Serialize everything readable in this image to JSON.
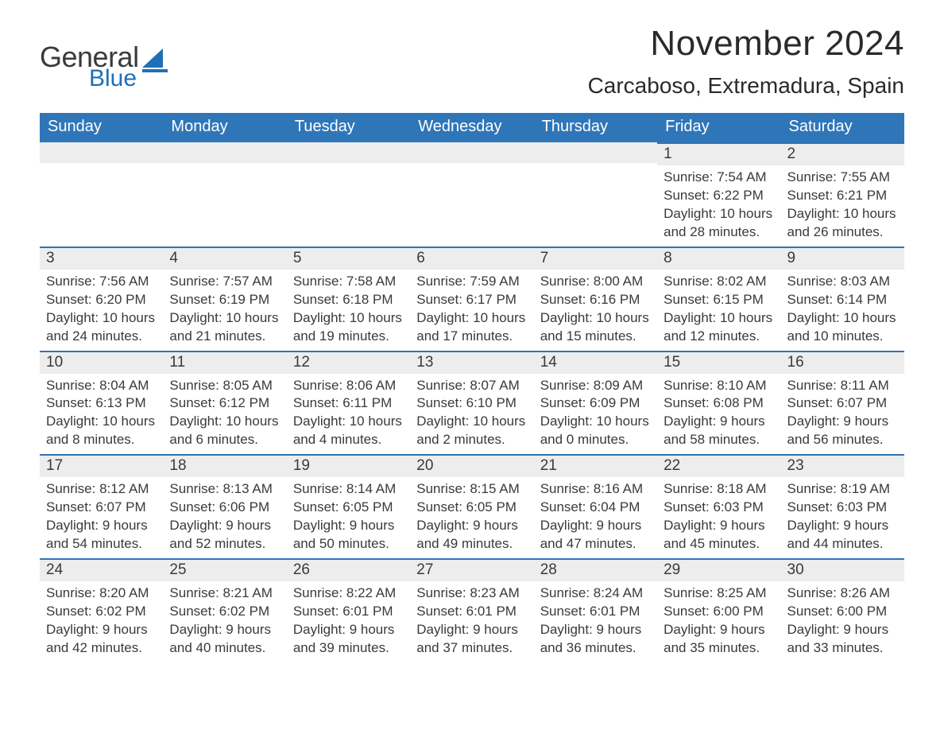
{
  "logo": {
    "text_general": "General",
    "text_blue": "Blue",
    "icon_color": "#1e6fb8"
  },
  "title": {
    "month": "November 2024",
    "location": "Carcaboso, Extremadura, Spain"
  },
  "colors": {
    "header_bg": "#2f76b9",
    "header_text": "#ffffff",
    "daybar_bg": "#ededed",
    "daybar_border": "#2f76b9",
    "body_text": "#3a3a3a",
    "page_bg": "#ffffff"
  },
  "fonts": {
    "family": "Arial",
    "title_size_pt": 33,
    "location_size_pt": 21,
    "header_size_pt": 15,
    "daynum_size_pt": 14,
    "body_size_pt": 13
  },
  "weekdays": [
    "Sunday",
    "Monday",
    "Tuesday",
    "Wednesday",
    "Thursday",
    "Friday",
    "Saturday"
  ],
  "weeks": [
    [
      null,
      null,
      null,
      null,
      null,
      {
        "n": "1",
        "sr": "Sunrise: 7:54 AM",
        "ss": "Sunset: 6:22 PM",
        "dl": "Daylight: 10 hours and 28 minutes."
      },
      {
        "n": "2",
        "sr": "Sunrise: 7:55 AM",
        "ss": "Sunset: 6:21 PM",
        "dl": "Daylight: 10 hours and 26 minutes."
      }
    ],
    [
      {
        "n": "3",
        "sr": "Sunrise: 7:56 AM",
        "ss": "Sunset: 6:20 PM",
        "dl": "Daylight: 10 hours and 24 minutes."
      },
      {
        "n": "4",
        "sr": "Sunrise: 7:57 AM",
        "ss": "Sunset: 6:19 PM",
        "dl": "Daylight: 10 hours and 21 minutes."
      },
      {
        "n": "5",
        "sr": "Sunrise: 7:58 AM",
        "ss": "Sunset: 6:18 PM",
        "dl": "Daylight: 10 hours and 19 minutes."
      },
      {
        "n": "6",
        "sr": "Sunrise: 7:59 AM",
        "ss": "Sunset: 6:17 PM",
        "dl": "Daylight: 10 hours and 17 minutes."
      },
      {
        "n": "7",
        "sr": "Sunrise: 8:00 AM",
        "ss": "Sunset: 6:16 PM",
        "dl": "Daylight: 10 hours and 15 minutes."
      },
      {
        "n": "8",
        "sr": "Sunrise: 8:02 AM",
        "ss": "Sunset: 6:15 PM",
        "dl": "Daylight: 10 hours and 12 minutes."
      },
      {
        "n": "9",
        "sr": "Sunrise: 8:03 AM",
        "ss": "Sunset: 6:14 PM",
        "dl": "Daylight: 10 hours and 10 minutes."
      }
    ],
    [
      {
        "n": "10",
        "sr": "Sunrise: 8:04 AM",
        "ss": "Sunset: 6:13 PM",
        "dl": "Daylight: 10 hours and 8 minutes."
      },
      {
        "n": "11",
        "sr": "Sunrise: 8:05 AM",
        "ss": "Sunset: 6:12 PM",
        "dl": "Daylight: 10 hours and 6 minutes."
      },
      {
        "n": "12",
        "sr": "Sunrise: 8:06 AM",
        "ss": "Sunset: 6:11 PM",
        "dl": "Daylight: 10 hours and 4 minutes."
      },
      {
        "n": "13",
        "sr": "Sunrise: 8:07 AM",
        "ss": "Sunset: 6:10 PM",
        "dl": "Daylight: 10 hours and 2 minutes."
      },
      {
        "n": "14",
        "sr": "Sunrise: 8:09 AM",
        "ss": "Sunset: 6:09 PM",
        "dl": "Daylight: 10 hours and 0 minutes."
      },
      {
        "n": "15",
        "sr": "Sunrise: 8:10 AM",
        "ss": "Sunset: 6:08 PM",
        "dl": "Daylight: 9 hours and 58 minutes."
      },
      {
        "n": "16",
        "sr": "Sunrise: 8:11 AM",
        "ss": "Sunset: 6:07 PM",
        "dl": "Daylight: 9 hours and 56 minutes."
      }
    ],
    [
      {
        "n": "17",
        "sr": "Sunrise: 8:12 AM",
        "ss": "Sunset: 6:07 PM",
        "dl": "Daylight: 9 hours and 54 minutes."
      },
      {
        "n": "18",
        "sr": "Sunrise: 8:13 AM",
        "ss": "Sunset: 6:06 PM",
        "dl": "Daylight: 9 hours and 52 minutes."
      },
      {
        "n": "19",
        "sr": "Sunrise: 8:14 AM",
        "ss": "Sunset: 6:05 PM",
        "dl": "Daylight: 9 hours and 50 minutes."
      },
      {
        "n": "20",
        "sr": "Sunrise: 8:15 AM",
        "ss": "Sunset: 6:05 PM",
        "dl": "Daylight: 9 hours and 49 minutes."
      },
      {
        "n": "21",
        "sr": "Sunrise: 8:16 AM",
        "ss": "Sunset: 6:04 PM",
        "dl": "Daylight: 9 hours and 47 minutes."
      },
      {
        "n": "22",
        "sr": "Sunrise: 8:18 AM",
        "ss": "Sunset: 6:03 PM",
        "dl": "Daylight: 9 hours and 45 minutes."
      },
      {
        "n": "23",
        "sr": "Sunrise: 8:19 AM",
        "ss": "Sunset: 6:03 PM",
        "dl": "Daylight: 9 hours and 44 minutes."
      }
    ],
    [
      {
        "n": "24",
        "sr": "Sunrise: 8:20 AM",
        "ss": "Sunset: 6:02 PM",
        "dl": "Daylight: 9 hours and 42 minutes."
      },
      {
        "n": "25",
        "sr": "Sunrise: 8:21 AM",
        "ss": "Sunset: 6:02 PM",
        "dl": "Daylight: 9 hours and 40 minutes."
      },
      {
        "n": "26",
        "sr": "Sunrise: 8:22 AM",
        "ss": "Sunset: 6:01 PM",
        "dl": "Daylight: 9 hours and 39 minutes."
      },
      {
        "n": "27",
        "sr": "Sunrise: 8:23 AM",
        "ss": "Sunset: 6:01 PM",
        "dl": "Daylight: 9 hours and 37 minutes."
      },
      {
        "n": "28",
        "sr": "Sunrise: 8:24 AM",
        "ss": "Sunset: 6:01 PM",
        "dl": "Daylight: 9 hours and 36 minutes."
      },
      {
        "n": "29",
        "sr": "Sunrise: 8:25 AM",
        "ss": "Sunset: 6:00 PM",
        "dl": "Daylight: 9 hours and 35 minutes."
      },
      {
        "n": "30",
        "sr": "Sunrise: 8:26 AM",
        "ss": "Sunset: 6:00 PM",
        "dl": "Daylight: 9 hours and 33 minutes."
      }
    ]
  ]
}
